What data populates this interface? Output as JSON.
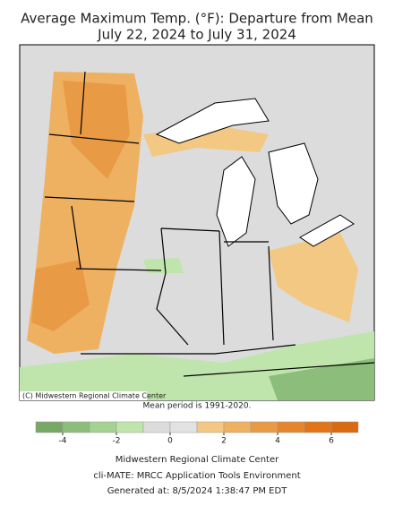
{
  "title": [
    "Average Maximum Temp. (°F): Departure from Mean",
    "July 22, 2024 to July 31, 2024"
  ],
  "map": {
    "copyright": "(C) Midwestern Regional Climate Center"
  },
  "note": "Mean period is 1991-2020.",
  "colorbar": {
    "bins": [
      -5,
      -4,
      -3,
      -2,
      -1,
      0,
      1,
      2,
      3,
      4,
      5,
      6,
      7
    ],
    "colors": [
      "#78a866",
      "#8dbd7b",
      "#a3d292",
      "#bfe5ad",
      "#dcdcdc",
      "#e2e2e2",
      "#f2c883",
      "#eeb162",
      "#e99a45",
      "#e5862c",
      "#e07417",
      "#d86a10"
    ],
    "ticks": [
      -4,
      -2,
      0,
      2,
      4,
      6
    ]
  },
  "footer": [
    "Midwestern Regional Climate Center",
    "cli-MATE: MRCC Application Tools Environment",
    "Generated at: 8/5/2024 1:38:47 PM EDT"
  ]
}
